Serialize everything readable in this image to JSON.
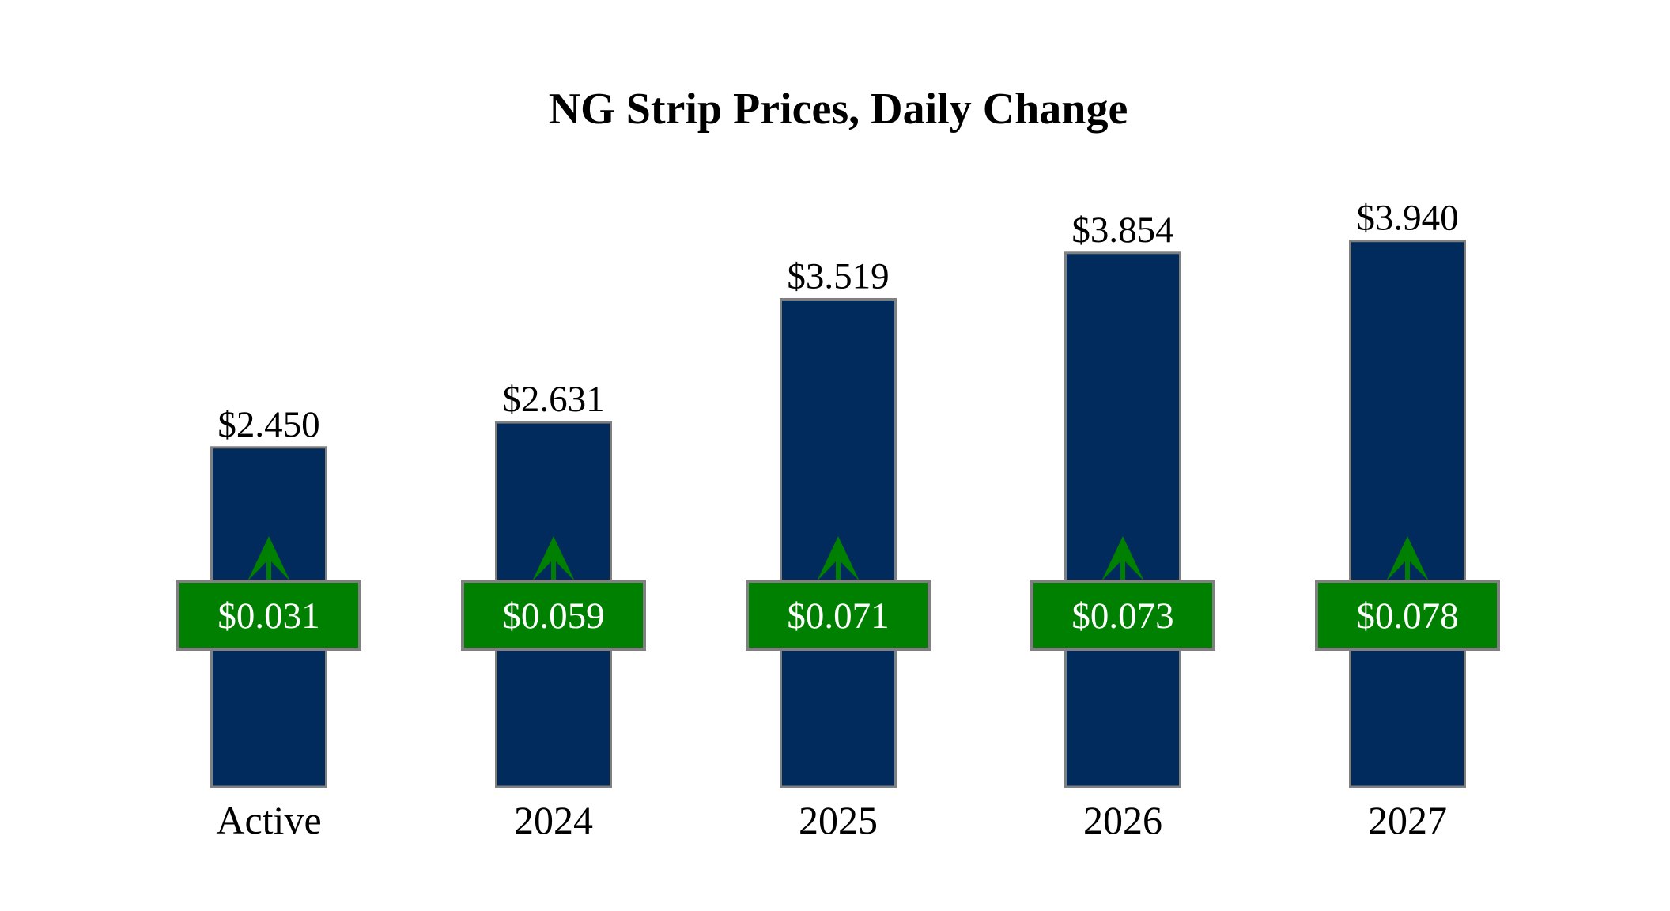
{
  "chart_data": {
    "type": "bar",
    "title": "NG Strip Prices, Daily Change",
    "xlabel": "",
    "ylabel": "",
    "categories": [
      "Active",
      "2024",
      "2025",
      "2026",
      "2027"
    ],
    "values": [
      2.45,
      2.631,
      3.519,
      3.854,
      3.94
    ],
    "value_labels": [
      "$2.450",
      "$2.631",
      "$3.519",
      "$3.854",
      "$3.940"
    ],
    "changes": [
      0.031,
      0.059,
      0.071,
      0.073,
      0.078
    ],
    "change_labels": [
      "$0.031",
      "$0.059",
      "$0.071",
      "$0.073",
      "$0.078"
    ],
    "change_direction": [
      "up",
      "up",
      "up",
      "up",
      "up"
    ],
    "ylim": [
      0,
      4.2
    ],
    "grid": false,
    "axes_visible": false,
    "colors": {
      "bar": "#002B5C",
      "bar_border": "#808080",
      "change_box": "#008000",
      "change_text": "#FFFFFF",
      "arrow": "#008000"
    }
  }
}
